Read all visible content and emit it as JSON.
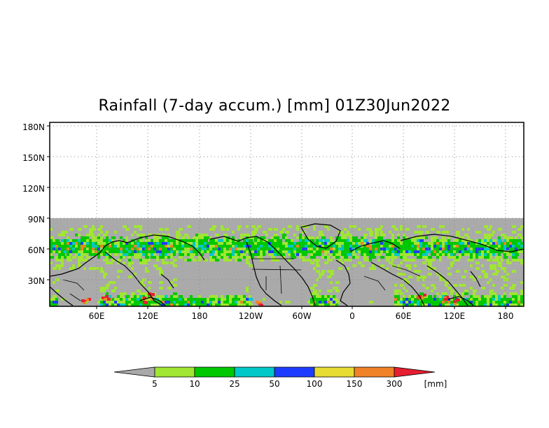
{
  "title": "Rainfall (7-day accum.) [mm] 01Z30Jun2022",
  "map": {
    "y_axis_labels": [
      "180N",
      "150N",
      "120N",
      "90N",
      "60N",
      "30N"
    ],
    "x_axis_labels": [
      "60E",
      "120E",
      "180",
      "120W",
      "60W",
      "0",
      "60E",
      "120E",
      "180"
    ],
    "no_data_color": "#aaaaaa",
    "land_outline_color": "#000000",
    "grid": "dotted"
  },
  "colorbar": {
    "unit": "[mm]",
    "thresholds": [
      "5",
      "10",
      "25",
      "50",
      "100",
      "150",
      "300"
    ],
    "colors": [
      "#a9a9a9",
      "#a0e632",
      "#00c800",
      "#00c8c8",
      "#1e3cff",
      "#e6dc32",
      "#f08228",
      "#e61e32"
    ]
  }
}
